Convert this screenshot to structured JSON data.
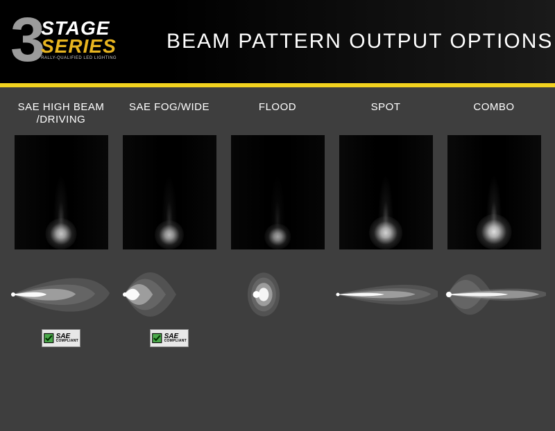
{
  "header": {
    "logo_number": "3",
    "logo_top": "STAGE",
    "logo_bottom": "SERIES",
    "tagline": "RALLY-QUALIFIED LED LIGHTING",
    "title": "BEAM PATTERN OUTPUT OPTIONS",
    "bg_gradient_from": "#000000",
    "bg_gradient_to": "#1a1a1a",
    "accent_bar_color": "#f2d21f",
    "logo_number_color": "#9b9b9b",
    "logo_top_color": "#ffffff",
    "logo_bottom_color": "#e8b520",
    "title_color": "#ffffff",
    "title_fontsize": 30
  },
  "main_bg": "#3e3e3e",
  "label_color": "#ffffff",
  "label_fontsize": 15,
  "beam_fill": "#777777",
  "beam_highlight": "#b5b5b5",
  "beam_core": "#ffffff",
  "columns": [
    {
      "label": "SAE HIGH BEAM\n/DRIVING",
      "beam_type": "narrow_long",
      "beam_length": 140,
      "beam_spread_deg": 16,
      "sae_compliant": true,
      "brightness": 0.5
    },
    {
      "label": "SAE FOG/WIDE",
      "beam_type": "wide_short",
      "beam_length": 75,
      "beam_spread_deg": 90,
      "sae_compliant": true,
      "brightness": 0.4
    },
    {
      "label": "FLOOD",
      "beam_type": "ellipse",
      "beam_length": 42,
      "beam_spread_deg": 160,
      "sae_compliant": false,
      "brightness": 0.25
    },
    {
      "label": "SPOT",
      "beam_type": "very_narrow",
      "beam_length": 150,
      "beam_spread_deg": 8,
      "sae_compliant": false,
      "brightness": 0.6
    },
    {
      "label": "COMBO",
      "beam_type": "combo",
      "beam_length": 150,
      "beam_spread_deg": 90,
      "sae_compliant": false,
      "brightness": 0.7
    }
  ],
  "sae_badge": {
    "text_top": "SAE",
    "text_bottom": "COMPLIANT",
    "check_bg": "#4aa84a",
    "check_border": "#000000",
    "badge_bg": "#e8e8e8"
  }
}
